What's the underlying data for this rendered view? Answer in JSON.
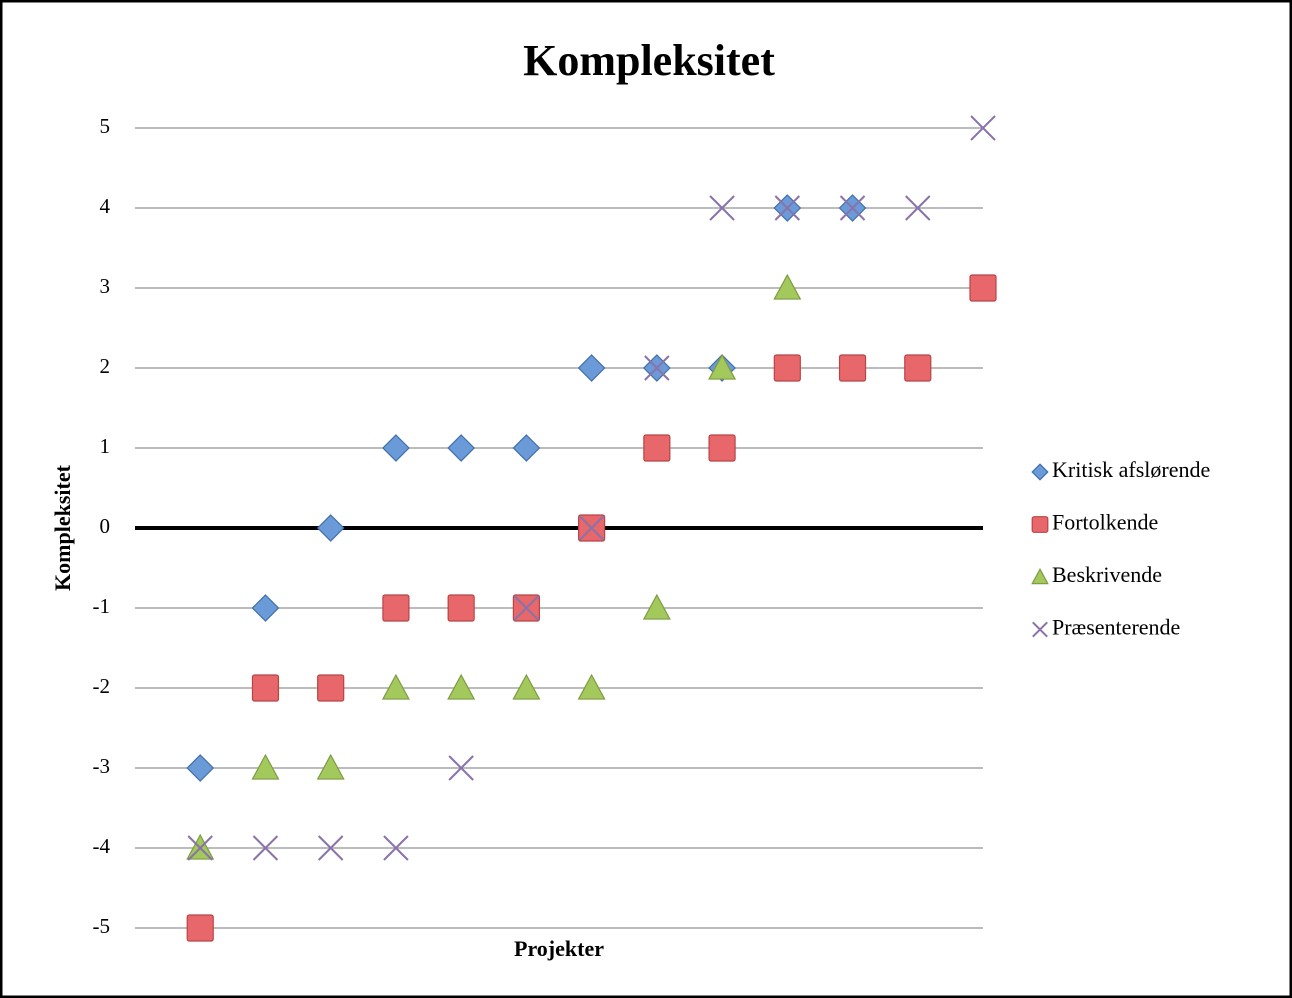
{
  "chart_data": {
    "type": "scatter",
    "title": "Kompleksitet",
    "x_label": "Projekter",
    "y_label": "Kompleksitet",
    "x": [
      1,
      2,
      3,
      4,
      5,
      6,
      7,
      8,
      9,
      10,
      11,
      12,
      13
    ],
    "xlim": [
      0,
      13
    ],
    "ylim": [
      -5,
      5
    ],
    "yticks": [
      -5,
      -4,
      -3,
      -2,
      -1,
      0,
      1,
      2,
      3,
      4,
      5
    ],
    "grid": true,
    "legend": "right",
    "series": [
      {
        "name": "Kritisk afslørende",
        "color": "#6a9bd8",
        "marker": "diamond",
        "values": [
          -3,
          -1,
          0,
          1,
          1,
          1,
          2,
          2,
          2,
          4,
          4,
          null,
          null
        ]
      },
      {
        "name": "Fortolkende",
        "color": "#e8676a",
        "marker": "square",
        "values": [
          -5,
          -2,
          -2,
          -1,
          -1,
          -1,
          0,
          1,
          1,
          2,
          2,
          2,
          3
        ]
      },
      {
        "name": "Beskrivende",
        "color": "#a3c95c",
        "marker": "triangle",
        "values": [
          -4,
          -3,
          -3,
          -2,
          -2,
          -2,
          -2,
          -1,
          2,
          3,
          null,
          null,
          null
        ]
      },
      {
        "name": "Præsenterende",
        "color": "#8a72aa",
        "marker": "x",
        "values": [
          -4,
          -4,
          -4,
          -4,
          -3,
          -1,
          0,
          2,
          4,
          4,
          4,
          4,
          5
        ]
      }
    ]
  }
}
